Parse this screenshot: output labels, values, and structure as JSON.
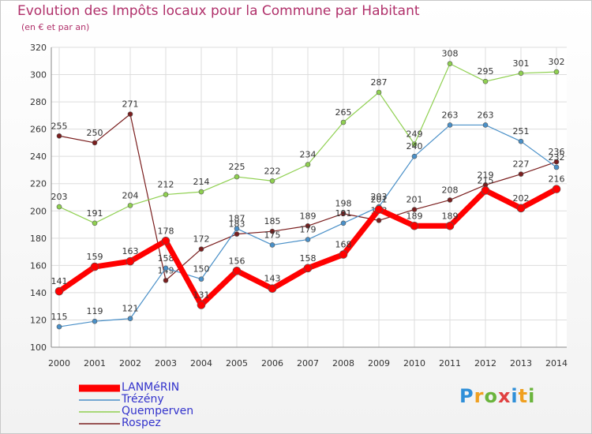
{
  "chart_data": {
    "type": "line",
    "title": "Evolution des Impôts locaux pour la Commune par Habitant",
    "subtitle": "(en € et par an)",
    "x": [
      "2000",
      "2001",
      "2002",
      "2003",
      "2004",
      "2005",
      "2006",
      "2007",
      "2008",
      "2009",
      "2010",
      "2011",
      "2012",
      "2013",
      "2014"
    ],
    "ylim": [
      100,
      320
    ],
    "yticks": [
      100,
      120,
      140,
      160,
      180,
      200,
      220,
      240,
      260,
      280,
      300,
      320
    ],
    "grid": true,
    "legend_position": "bottom-left",
    "series": [
      {
        "name": "LANMéRIN",
        "color": "#ff0000",
        "values": [
          141,
          159,
          163,
          178,
          131,
          156,
          143,
          158,
          168,
          201,
          189,
          189,
          215,
          202,
          216
        ]
      },
      {
        "name": "Trézény",
        "color": "#4a90c8",
        "values": [
          115,
          119,
          121,
          158,
          150,
          187,
          175,
          179,
          191,
          203,
          240,
          263,
          263,
          251,
          232
        ]
      },
      {
        "name": "Quemperven",
        "color": "#8fd050",
        "values": [
          203,
          191,
          204,
          212,
          214,
          225,
          222,
          234,
          265,
          287,
          249,
          308,
          295,
          301,
          302
        ]
      },
      {
        "name": "Rospez",
        "color": "#7a1e1e",
        "values": [
          255,
          250,
          271,
          149,
          172,
          183,
          185,
          189,
          198,
          193,
          201,
          208,
          219,
          227,
          236
        ]
      }
    ]
  },
  "brand": {
    "letters": [
      "P",
      "r",
      "o",
      "x",
      "i",
      "t",
      "i"
    ],
    "colors": [
      "#2f8fd8",
      "#f0a020",
      "#6ab43c",
      "#e04040",
      "#2f8fd8",
      "#f0a020",
      "#6ab43c"
    ]
  }
}
